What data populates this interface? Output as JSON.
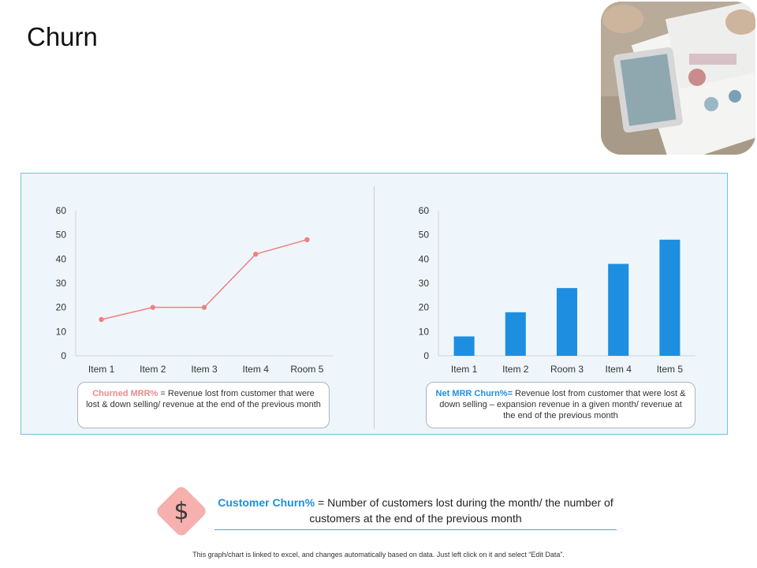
{
  "page": {
    "title": "Churn"
  },
  "colors": {
    "line": "#f08080",
    "bar": "#1e8fe0",
    "accent_blue": "#1e8fe0",
    "accent_red": "#e98b8b",
    "panel_bg": "#eef6fb",
    "panel_border": "#6fc3d6"
  },
  "chart_data": [
    {
      "type": "line",
      "categories": [
        "Item 1",
        "Item 2",
        "Item 3",
        "Item 4",
        "Room 5"
      ],
      "values": [
        15,
        20,
        20,
        42,
        48
      ],
      "yticks": [
        0,
        10,
        20,
        30,
        40,
        50,
        60
      ],
      "ylim": [
        0,
        60
      ],
      "grid": false,
      "legend": "none"
    },
    {
      "type": "bar",
      "categories": [
        "Item 1",
        "Item 2",
        "Room 3",
        "Item 4",
        "Item 5"
      ],
      "values": [
        8,
        18,
        28,
        38,
        48
      ],
      "yticks": [
        0,
        10,
        20,
        30,
        40,
        50,
        60
      ],
      "ylim": [
        0,
        60
      ],
      "grid": false,
      "legend": "none"
    }
  ],
  "definitions": {
    "left": {
      "term": "Churned MRR%",
      "text": " = Revenue lost from customer that were lost & down selling/ revenue at the end of the previous month"
    },
    "right": {
      "term": "Net MRR Churn%=",
      "text": " Revenue lost from customer that were lost & down selling – expansion revenue in a given month/ revenue at the end of the previous month"
    }
  },
  "formula": {
    "term": "Customer Churn%",
    "text": " = Number of customers lost during the month/ the number of customers at the end of the previous month"
  },
  "icons": {
    "dollar": "dollar-icon",
    "photo": "tablet-report-photo"
  },
  "footer": "This graph/chart is linked to excel, and changes automatically based on data. Just left click on it and select “Edit Data”."
}
